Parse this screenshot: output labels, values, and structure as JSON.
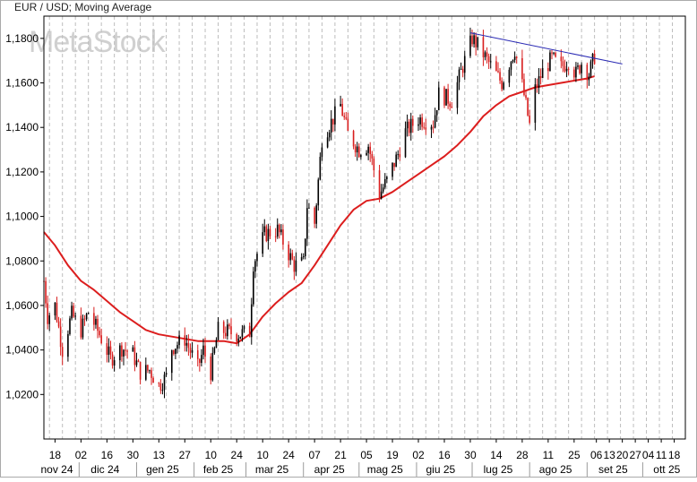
{
  "chart_data": {
    "type": "candlestick",
    "title": "EUR / USD; Moving Average",
    "watermark": "MetaStock",
    "ylim": [
      1.0,
      1.19
    ],
    "y_ticks": [
      {
        "value": 1.02,
        "label": "1,0200"
      },
      {
        "value": 1.04,
        "label": "1,0400"
      },
      {
        "value": 1.06,
        "label": "1,0600"
      },
      {
        "value": 1.08,
        "label": "1,0800"
      },
      {
        "value": 1.1,
        "label": "1,1000"
      },
      {
        "value": 1.12,
        "label": "1,1200"
      },
      {
        "value": 1.14,
        "label": "1,1400"
      },
      {
        "value": 1.16,
        "label": "1,1600"
      },
      {
        "value": 1.18,
        "label": "1,1800"
      }
    ],
    "x_start": "2024-11-12",
    "x_end": "2025-10-24",
    "x_tick_labels": [
      {
        "date": "2024-11-18",
        "label": "18"
      },
      {
        "date": "2024-12-02",
        "label": "02"
      },
      {
        "date": "2024-12-16",
        "label": "16"
      },
      {
        "date": "2024-12-30",
        "label": "30"
      },
      {
        "date": "2025-01-13",
        "label": "13"
      },
      {
        "date": "2025-01-27",
        "label": "27"
      },
      {
        "date": "2025-02-10",
        "label": "10"
      },
      {
        "date": "2025-02-24",
        "label": "24"
      },
      {
        "date": "2025-03-10",
        "label": "10"
      },
      {
        "date": "2025-03-24",
        "label": "24"
      },
      {
        "date": "2025-04-07",
        "label": "07"
      },
      {
        "date": "2025-04-21",
        "label": "21"
      },
      {
        "date": "2025-05-05",
        "label": "05"
      },
      {
        "date": "2025-05-19",
        "label": "19"
      },
      {
        "date": "2025-06-02",
        "label": "02"
      },
      {
        "date": "2025-06-16",
        "label": "16"
      },
      {
        "date": "2025-06-30",
        "label": "30"
      },
      {
        "date": "2025-07-14",
        "label": "14"
      },
      {
        "date": "2025-07-28",
        "label": "28"
      },
      {
        "date": "2025-08-11",
        "label": "11"
      },
      {
        "date": "2025-08-25",
        "label": "25"
      },
      {
        "date": "2025-09-06",
        "label": "06"
      },
      {
        "date": "2025-09-13",
        "label": "13"
      },
      {
        "date": "2025-09-20",
        "label": "20"
      },
      {
        "date": "2025-09-27",
        "label": "27"
      },
      {
        "date": "2025-10-04",
        "label": "04"
      },
      {
        "date": "2025-10-11",
        "label": "11"
      },
      {
        "date": "2025-10-18",
        "label": "18"
      }
    ],
    "month_labels": [
      {
        "date": "2024-11-19",
        "label": "nov 24"
      },
      {
        "date": "2024-12-15",
        "label": "dic 24"
      },
      {
        "date": "2025-01-15",
        "label": "gen 25"
      },
      {
        "date": "2025-02-14",
        "label": "feb 25"
      },
      {
        "date": "2025-03-15",
        "label": "mar 25"
      },
      {
        "date": "2025-04-15",
        "label": "apr 25"
      },
      {
        "date": "2025-05-15",
        "label": "mag 25"
      },
      {
        "date": "2025-06-14",
        "label": "giu 25"
      },
      {
        "date": "2025-07-15",
        "label": "lug 25"
      },
      {
        "date": "2025-08-15",
        "label": "ago 25"
      },
      {
        "date": "2025-09-15",
        "label": "set 25"
      },
      {
        "date": "2025-10-14",
        "label": "ott 25"
      }
    ],
    "month_boundaries": [
      "2024-12-01",
      "2025-01-01",
      "2025-02-01",
      "2025-03-01",
      "2025-04-01",
      "2025-05-01",
      "2025-06-01",
      "2025-07-01",
      "2025-08-01",
      "2025-09-01",
      "2025-10-01"
    ],
    "grid": true,
    "price_close_anchors": [
      [
        "2024-11-12",
        1.071
      ],
      [
        "2024-11-14",
        1.055
      ],
      [
        "2024-11-18",
        1.06
      ],
      [
        "2024-11-22",
        1.04
      ],
      [
        "2024-11-27",
        1.056
      ],
      [
        "2024-12-02",
        1.049
      ],
      [
        "2024-12-06",
        1.057
      ],
      [
        "2024-12-12",
        1.047
      ],
      [
        "2024-12-18",
        1.036
      ],
      [
        "2024-12-24",
        1.041
      ],
      [
        "2024-12-30",
        1.038
      ],
      [
        "2025-01-03",
        1.03
      ],
      [
        "2025-01-08",
        1.031
      ],
      [
        "2025-01-13",
        1.024
      ],
      [
        "2025-01-17",
        1.028
      ],
      [
        "2025-01-20",
        1.041
      ],
      [
        "2025-01-27",
        1.045
      ],
      [
        "2025-02-03",
        1.032
      ],
      [
        "2025-02-06",
        1.04
      ],
      [
        "2025-02-10",
        1.03
      ],
      [
        "2025-02-14",
        1.049
      ],
      [
        "2025-02-20",
        1.048
      ],
      [
        "2025-02-24",
        1.047
      ],
      [
        "2025-03-03",
        1.048
      ],
      [
        "2025-03-05",
        1.079
      ],
      [
        "2025-03-11",
        1.092
      ],
      [
        "2025-03-18",
        1.094
      ],
      [
        "2025-03-27",
        1.078
      ],
      [
        "2025-04-01",
        1.079
      ],
      [
        "2025-04-03",
        1.105
      ],
      [
        "2025-04-07",
        1.097
      ],
      [
        "2025-04-11",
        1.135
      ],
      [
        "2025-04-21",
        1.15
      ],
      [
        "2025-04-25",
        1.137
      ],
      [
        "2025-05-01",
        1.13
      ],
      [
        "2025-05-06",
        1.132
      ],
      [
        "2025-05-12",
        1.11
      ],
      [
        "2025-05-16",
        1.116
      ],
      [
        "2025-05-22",
        1.128
      ],
      [
        "2025-05-26",
        1.138
      ],
      [
        "2025-06-02",
        1.144
      ],
      [
        "2025-06-10",
        1.142
      ],
      [
        "2025-06-13",
        1.155
      ],
      [
        "2025-06-20",
        1.152
      ],
      [
        "2025-06-25",
        1.165
      ],
      [
        "2025-07-01",
        1.18
      ],
      [
        "2025-07-04",
        1.177
      ],
      [
        "2025-07-10",
        1.169
      ],
      [
        "2025-07-17",
        1.16
      ],
      [
        "2025-07-24",
        1.175
      ],
      [
        "2025-07-28",
        1.159
      ],
      [
        "2025-08-01",
        1.141
      ],
      [
        "2025-08-04",
        1.157
      ],
      [
        "2025-08-08",
        1.165
      ],
      [
        "2025-08-13",
        1.171
      ],
      [
        "2025-08-18",
        1.167
      ],
      [
        "2025-08-22",
        1.17
      ],
      [
        "2025-08-26",
        1.164
      ],
      [
        "2025-08-29",
        1.169
      ],
      [
        "2025-09-02",
        1.164
      ],
      [
        "2025-09-05",
        1.172
      ]
    ],
    "series": [
      {
        "name": "EUR / USD",
        "color": "#d81e1e",
        "up_color": "#000000",
        "down_color": "#d81e1e"
      },
      {
        "name": "Moving Average",
        "color": "#dc1e1e",
        "points": [
          [
            "2024-11-12",
            1.093
          ],
          [
            "2024-11-18",
            1.087
          ],
          [
            "2024-11-25",
            1.078
          ],
          [
            "2024-12-02",
            1.071
          ],
          [
            "2024-12-09",
            1.067
          ],
          [
            "2024-12-16",
            1.062
          ],
          [
            "2024-12-23",
            1.057
          ],
          [
            "2024-12-30",
            1.053
          ],
          [
            "2025-01-06",
            1.049
          ],
          [
            "2025-01-13",
            1.047
          ],
          [
            "2025-01-20",
            1.046
          ],
          [
            "2025-01-27",
            1.045
          ],
          [
            "2025-02-03",
            1.044
          ],
          [
            "2025-02-10",
            1.044
          ],
          [
            "2025-02-17",
            1.044
          ],
          [
            "2025-02-24",
            1.043
          ],
          [
            "2025-03-03",
            1.047
          ],
          [
            "2025-03-10",
            1.055
          ],
          [
            "2025-03-17",
            1.061
          ],
          [
            "2025-03-24",
            1.066
          ],
          [
            "2025-03-31",
            1.07
          ],
          [
            "2025-04-07",
            1.078
          ],
          [
            "2025-04-14",
            1.087
          ],
          [
            "2025-04-21",
            1.096
          ],
          [
            "2025-04-28",
            1.103
          ],
          [
            "2025-05-05",
            1.107
          ],
          [
            "2025-05-12",
            1.108
          ],
          [
            "2025-05-19",
            1.111
          ],
          [
            "2025-05-26",
            1.115
          ],
          [
            "2025-06-02",
            1.119
          ],
          [
            "2025-06-09",
            1.123
          ],
          [
            "2025-06-16",
            1.127
          ],
          [
            "2025-06-23",
            1.132
          ],
          [
            "2025-06-30",
            1.138
          ],
          [
            "2025-07-07",
            1.145
          ],
          [
            "2025-07-14",
            1.15
          ],
          [
            "2025-07-21",
            1.154
          ],
          [
            "2025-07-28",
            1.156
          ],
          [
            "2025-08-04",
            1.158
          ],
          [
            "2025-08-11",
            1.159
          ],
          [
            "2025-08-18",
            1.16
          ],
          [
            "2025-08-25",
            1.161
          ],
          [
            "2025-09-01",
            1.162
          ],
          [
            "2025-09-05",
            1.163
          ]
        ]
      },
      {
        "name": "trendline",
        "color": "#2a2ab4",
        "points": [
          [
            "2025-06-30",
            1.1825
          ],
          [
            "2025-09-20",
            1.1685
          ]
        ]
      }
    ]
  }
}
